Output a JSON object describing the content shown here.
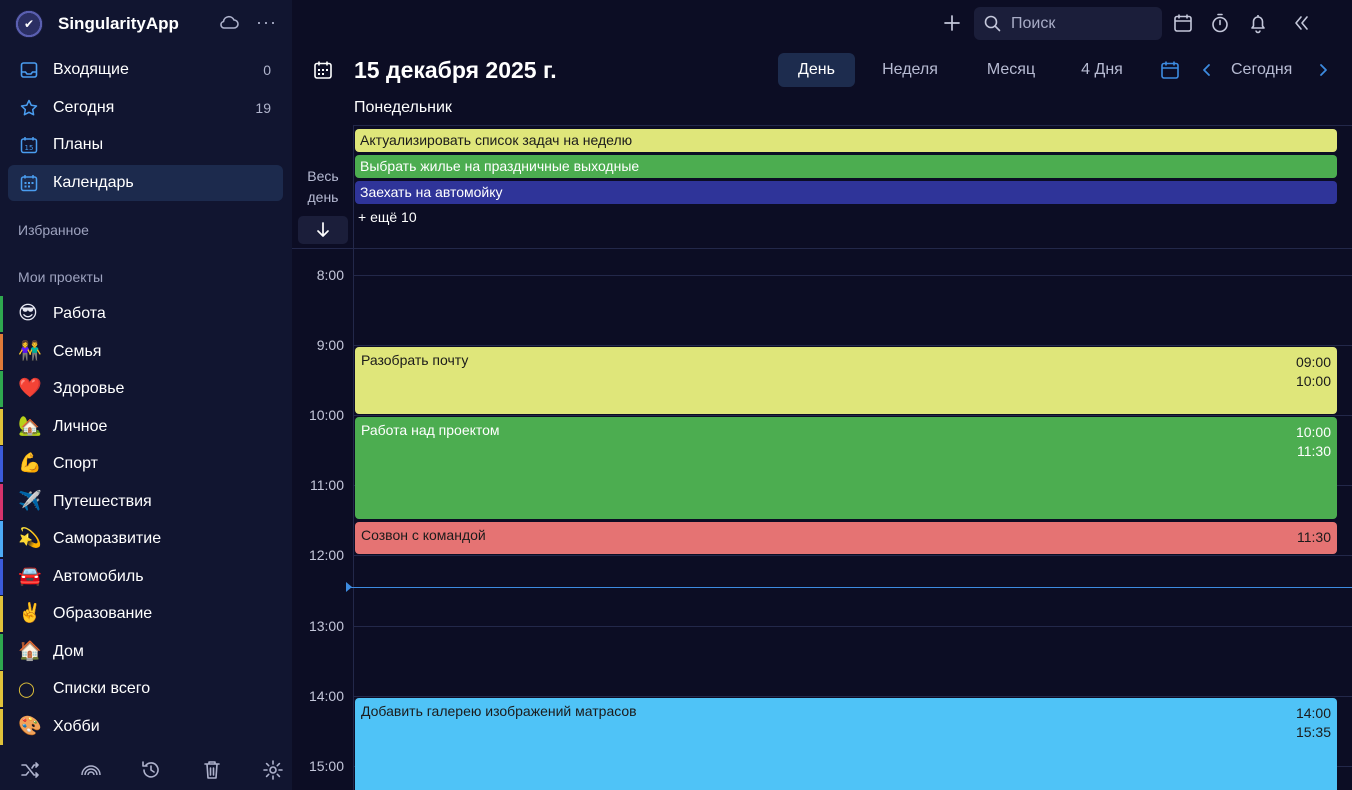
{
  "app": {
    "name": "SingularityApp",
    "logo_icon": "check-circle-icon",
    "sync_icon": "cloud-icon",
    "more_icon": "more-horizontal-icon"
  },
  "sidebar": {
    "nav": [
      {
        "label": "Входящие",
        "count": "0",
        "icon": "inbox-icon"
      },
      {
        "label": "Сегодня",
        "count": "19",
        "icon": "star-icon"
      },
      {
        "label": "Планы",
        "count": "",
        "icon": "calendar-15-icon"
      },
      {
        "label": "Календарь",
        "count": "",
        "icon": "calendar-grid-icon",
        "active": true
      }
    ],
    "favorites_title": "Избранное",
    "projects_title": "Мои проекты",
    "projects": [
      {
        "emoji": "😎",
        "label": "Работа",
        "color": "#2fa84f"
      },
      {
        "emoji": "👫",
        "label": "Семья",
        "color": "#e07b39"
      },
      {
        "emoji": "❤️",
        "label": "Здоровье",
        "color": "#2fa84f"
      },
      {
        "emoji": "🏡",
        "label": "Личное",
        "color": "#e0c23a"
      },
      {
        "emoji": "💪",
        "label": "Спорт",
        "color": "#3b5bdb"
      },
      {
        "emoji": "✈️",
        "label": "Путешествия",
        "color": "#d6336c"
      },
      {
        "emoji": "💫",
        "label": "Саморазвитие",
        "color": "#4dabf7"
      },
      {
        "emoji": "🚘",
        "label": "Автомобиль",
        "color": "#3b5bdb"
      },
      {
        "emoji": "✌️",
        "label": "Образование",
        "color": "#e0c23a"
      },
      {
        "emoji": "🏠",
        "label": "Дом",
        "color": "#2fa84f"
      },
      {
        "emoji": "◯",
        "label": "Списки всего",
        "color": "#e0c23a"
      },
      {
        "emoji": "🎨",
        "label": "Хобби",
        "color": "#e0c23a"
      }
    ],
    "footer_icons": [
      "shuffle-icon",
      "rainbow-icon",
      "history-icon",
      "trash-icon",
      "settings-icon"
    ]
  },
  "topbar": {
    "search_placeholder": "Поиск",
    "icons": [
      "plus-icon",
      "search-icon",
      "calendar-icon",
      "timer-icon",
      "bell-icon",
      "collapse-left-icon"
    ]
  },
  "calendar": {
    "date_title": "15 декабря 2025 г.",
    "weekday": "Понедельник",
    "views": [
      {
        "label": "День",
        "active": true
      },
      {
        "label": "Неделя",
        "active": false
      },
      {
        "label": "Месяц",
        "active": false
      },
      {
        "label": "4 Дня",
        "active": false
      }
    ],
    "today_label": "Сегодня",
    "allday_label": "Весь день",
    "allday_events": [
      {
        "title": "Актуализировать список задач на неделю",
        "color": "#dfe67a",
        "text_color": "#1b1b1b"
      },
      {
        "title": "Выбрать жилье на праздничные выходные",
        "color": "#4cad50",
        "text_color": "#ffffff"
      },
      {
        "title": "Заехать на автомойку",
        "color": "#2f3499",
        "text_color": "#ffffff"
      }
    ],
    "more_label": "+ ещё 10",
    "hours": [
      "8:00",
      "9:00",
      "10:00",
      "11:00",
      "12:00",
      "13:00",
      "14:00",
      "15:00"
    ],
    "events": [
      {
        "title": "Разобрать почту",
        "start": "09:00",
        "end": "10:00",
        "color": "#dfe67a",
        "text_color": "#1b1b1b"
      },
      {
        "title": "Работа над проектом",
        "start": "10:00",
        "end": "11:30",
        "color": "#4cad50",
        "text_color": "#ffffff"
      },
      {
        "title": "Созвон с командой",
        "start": "11:30",
        "end": "",
        "color": "#e57373",
        "text_color": "#1b1b1b"
      },
      {
        "title": "Добавить галерею изображений матрасов",
        "start": "14:00",
        "end": "15:35",
        "color": "#4fc3f7",
        "text_color": "#1b1b1b"
      }
    ],
    "now_time": "12:25",
    "now_color": "#3d8be0"
  }
}
